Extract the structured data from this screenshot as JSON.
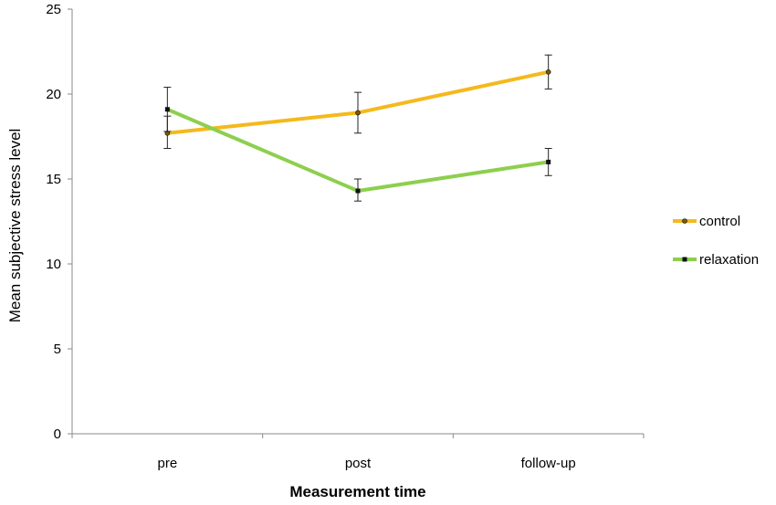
{
  "chart_data": {
    "type": "line",
    "title": "",
    "xlabel": "Measurement time",
    "ylabel": "Mean subjective stress level",
    "categories": [
      "pre",
      "post",
      "follow-up"
    ],
    "ylim": [
      0,
      25
    ],
    "yticks": [
      0,
      5,
      10,
      15,
      20,
      25
    ],
    "grid": false,
    "legend_position": "right",
    "series": [
      {
        "name": "control",
        "color": "#f5b91d",
        "marker": "circle",
        "values": [
          17.7,
          18.9,
          21.3
        ],
        "error_low": [
          16.8,
          17.7,
          20.3
        ],
        "error_high": [
          18.7,
          20.1,
          22.3
        ]
      },
      {
        "name": "relaxation",
        "color": "#8dcf4e",
        "marker": "square",
        "values": [
          19.1,
          14.3,
          16.0
        ],
        "error_low": [
          17.8,
          13.7,
          15.2
        ],
        "error_high": [
          20.4,
          15.0,
          16.8
        ]
      }
    ]
  }
}
